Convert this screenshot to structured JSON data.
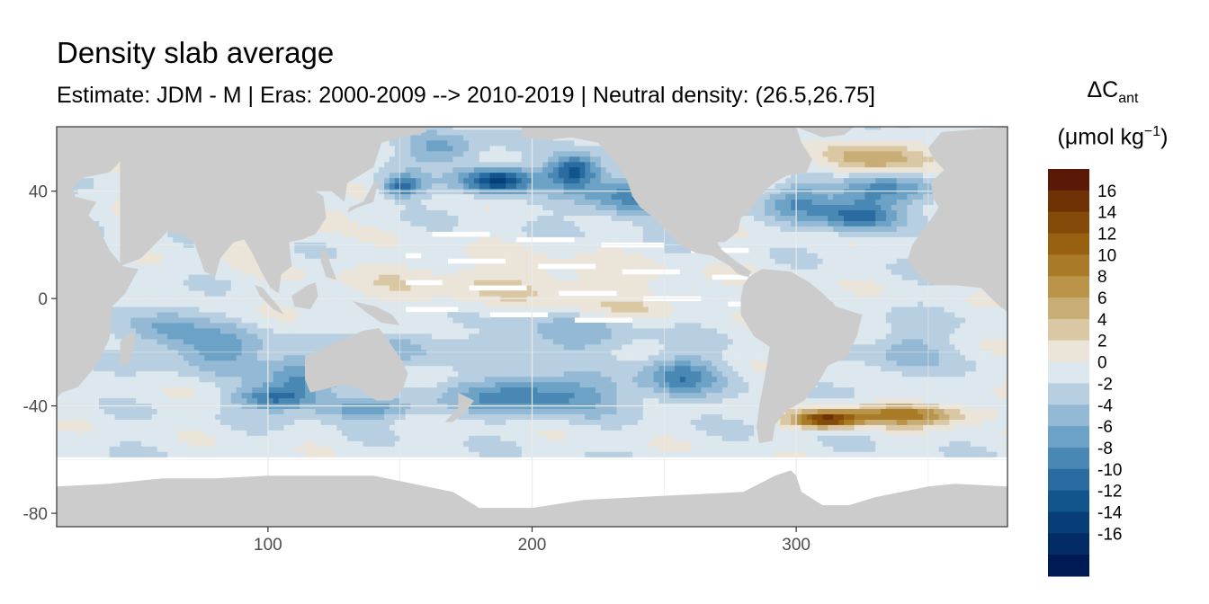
{
  "chart_data": {
    "type": "heatmap",
    "title": "Density slab average",
    "subtitle": "Estimate: JDM - M | Eras: 2000-2009 --> 2010-2019 | Neutral density: (26.5,26.75]",
    "xlim": [
      20,
      380
    ],
    "ylim": [
      -85,
      64
    ],
    "x_ticks": [
      "100",
      "200",
      "300"
    ],
    "x_tick_values": [
      100,
      200,
      300
    ],
    "y_ticks": [
      "40",
      "0",
      "-40",
      "-80"
    ],
    "y_tick_values": [
      40,
      0,
      -40,
      -80
    ],
    "grid": true,
    "legend": {
      "title_main": "ΔC",
      "title_sub": "ant",
      "unit_prefix": "(μmol kg",
      "unit_sup": "−1",
      "unit_suffix": ")",
      "placement": "right",
      "labels": [
        "16",
        "14",
        "12",
        "10",
        "8",
        "6",
        "4",
        "2",
        "0",
        "-2",
        "-4",
        "-6",
        "-8",
        "-10",
        "-12",
        "-14",
        "-16"
      ],
      "colors": [
        "#5a1807",
        "#6f3205",
        "#844a0a",
        "#97610f",
        "#a97b26",
        "#b99449",
        "#c8ad77",
        "#dac8a5",
        "#ebe4d9",
        "#dce7ee",
        "#b7cfe1",
        "#93b9d4",
        "#6ca2c6",
        "#4988b5",
        "#2a6ca1",
        "#12548c",
        "#073e78",
        "#032b65",
        "#001a55"
      ]
    },
    "colors": {
      "land": "#cccccc",
      "missing": "#ffffff",
      "panel_border": "#333333",
      "grid": "#ebebeb"
    }
  }
}
